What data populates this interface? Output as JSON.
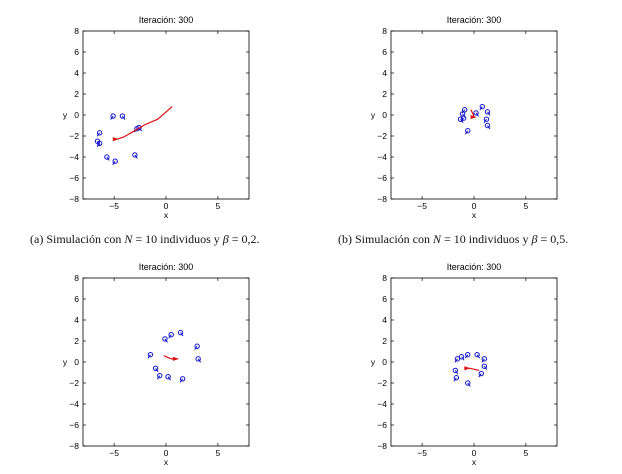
{
  "captions": {
    "a": {
      "label": "(a)",
      "pre": "Simulación con",
      "n_sym": "N",
      "n_val": "= 10",
      "mid": "individuos y",
      "b_sym": "β",
      "b_val": "= 0,2."
    },
    "b": {
      "label": "(b)",
      "pre": "Simulación con",
      "n_sym": "N",
      "n_val": "= 10",
      "mid": "individuos y",
      "b_sym": "β",
      "b_val": "= 0,5."
    }
  },
  "colors": {
    "individuals": "#1010cc",
    "leader": "#dd1111"
  },
  "chart_data": [
    {
      "type": "scatter",
      "title": "Iteración: 300",
      "xlabel": "x",
      "ylabel": "y",
      "xlim": [
        -8,
        8
      ],
      "ylim": [
        -8,
        8
      ],
      "xticks": [
        -5,
        0,
        5
      ],
      "yticks": [
        8,
        6,
        4,
        2,
        0,
        -2,
        -4,
        -6,
        -8
      ],
      "grid": false,
      "series": [
        {
          "role": "individuals",
          "points": [
            [
              -5.1,
              -0.1
            ],
            [
              -4.2,
              -0.1
            ],
            [
              -6.4,
              -1.7
            ],
            [
              -6.6,
              -2.5
            ],
            [
              -6.4,
              -2.7
            ],
            [
              -5.7,
              -4.0
            ],
            [
              -4.9,
              -4.4
            ],
            [
              -3.0,
              -3.8
            ],
            [
              -2.8,
              -1.3
            ],
            [
              -2.6,
              -1.2
            ]
          ]
        },
        {
          "role": "leader",
          "trail": [
            [
              0.6,
              0.8
            ],
            [
              -0.8,
              -0.4
            ],
            [
              -2.0,
              -0.9
            ],
            [
              -3.2,
              -1.6
            ],
            [
              -4.1,
              -2.1
            ],
            [
              -4.7,
              -2.3
            ]
          ],
          "head": [
            -4.8,
            -2.3
          ]
        }
      ]
    },
    {
      "type": "scatter",
      "title": "Iteración: 300",
      "xlabel": "x",
      "ylabel": "y",
      "xlim": [
        -8,
        8
      ],
      "ylim": [
        -8,
        8
      ],
      "xticks": [
        -5,
        0,
        5
      ],
      "yticks": [
        8,
        6,
        4,
        2,
        0,
        -2,
        -4,
        -6,
        -8
      ],
      "grid": false,
      "series": [
        {
          "role": "individuals",
          "points": [
            [
              0.8,
              0.8
            ],
            [
              1.3,
              0.3
            ],
            [
              1.2,
              -0.4
            ],
            [
              1.3,
              -1.0
            ],
            [
              -1.0,
              -0.3
            ],
            [
              -1.3,
              -0.4
            ],
            [
              -0.6,
              -1.5
            ],
            [
              -1.1,
              0.1
            ],
            [
              -0.9,
              0.5
            ],
            [
              0.2,
              0.2
            ]
          ]
        },
        {
          "role": "leader",
          "trail": [
            [
              -0.3,
              0.5
            ],
            [
              -0.1,
              0.1
            ],
            [
              0.0,
              -0.2
            ]
          ],
          "head": [
            0.0,
            -0.2
          ]
        }
      ]
    },
    {
      "type": "scatter",
      "title": "Iteración: 300",
      "xlabel": "x",
      "ylabel": "y",
      "xlim": [
        -8,
        8
      ],
      "ylim": [
        -8,
        8
      ],
      "xticks": [
        -5,
        0,
        5
      ],
      "yticks": [
        8,
        6,
        4,
        2,
        0,
        -2,
        -4,
        -6,
        -8
      ],
      "grid": false,
      "series": [
        {
          "role": "individuals",
          "points": [
            [
              0.5,
              2.6
            ],
            [
              1.4,
              2.8
            ],
            [
              3.0,
              1.5
            ],
            [
              3.1,
              0.3
            ],
            [
              -1.5,
              0.7
            ],
            [
              -1.0,
              -0.6
            ],
            [
              -0.6,
              -1.3
            ],
            [
              0.2,
              -1.4
            ],
            [
              1.6,
              -1.6
            ],
            [
              -0.1,
              2.2
            ]
          ]
        },
        {
          "role": "leader",
          "trail": [
            [
              -0.2,
              0.6
            ],
            [
              0.5,
              0.3
            ],
            [
              1.0,
              0.3
            ]
          ],
          "head": [
            1.0,
            0.3
          ]
        }
      ]
    },
    {
      "type": "scatter",
      "title": "Iteración: 300",
      "xlabel": "x",
      "ylabel": "y",
      "xlim": [
        -8,
        8
      ],
      "ylim": [
        -8,
        8
      ],
      "xticks": [
        -5,
        0,
        5
      ],
      "yticks": [
        8,
        6,
        4,
        2,
        0,
        -2,
        -4,
        -6,
        -8
      ],
      "grid": false,
      "series": [
        {
          "role": "individuals",
          "points": [
            [
              -0.6,
              0.7
            ],
            [
              0.3,
              0.7
            ],
            [
              1.0,
              0.3
            ],
            [
              1.0,
              -0.4
            ],
            [
              0.7,
              -1.1
            ],
            [
              -0.6,
              -2.0
            ],
            [
              -1.7,
              -1.5
            ],
            [
              -1.8,
              -0.8
            ],
            [
              -1.6,
              0.3
            ],
            [
              -1.2,
              0.5
            ]
          ]
        },
        {
          "role": "leader",
          "trail": [
            [
              0.5,
              -0.8
            ],
            [
              -0.4,
              -0.6
            ],
            [
              -0.6,
              -0.6
            ]
          ],
          "head": [
            -0.6,
            -0.6
          ]
        }
      ]
    }
  ]
}
